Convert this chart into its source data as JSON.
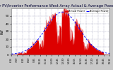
{
  "title": "Solar PV/Inverter Performance West Array Actual & Average Power Output",
  "title_fontsize": 3.8,
  "bg_color": "#c8c8c8",
  "plot_bg_color": "#ffffff",
  "bar_color": "#dd0000",
  "avg_line_color": "#0000ff",
  "xlabel": "",
  "ylabel": "kW",
  "ylabel_fontsize": 3.5,
  "tick_fontsize": 3.0,
  "ylim": [
    0,
    60
  ],
  "yticks": [
    0,
    10,
    20,
    30,
    40,
    50
  ],
  "ytick_labels": [
    "0",
    "10",
    "20",
    "30",
    "40",
    "50"
  ],
  "legend_labels": [
    "Actual Power",
    "Average Power"
  ],
  "legend_colors": [
    "#dd0000",
    "#0000ff"
  ],
  "num_points": 288,
  "grid_color": "#8888aa"
}
